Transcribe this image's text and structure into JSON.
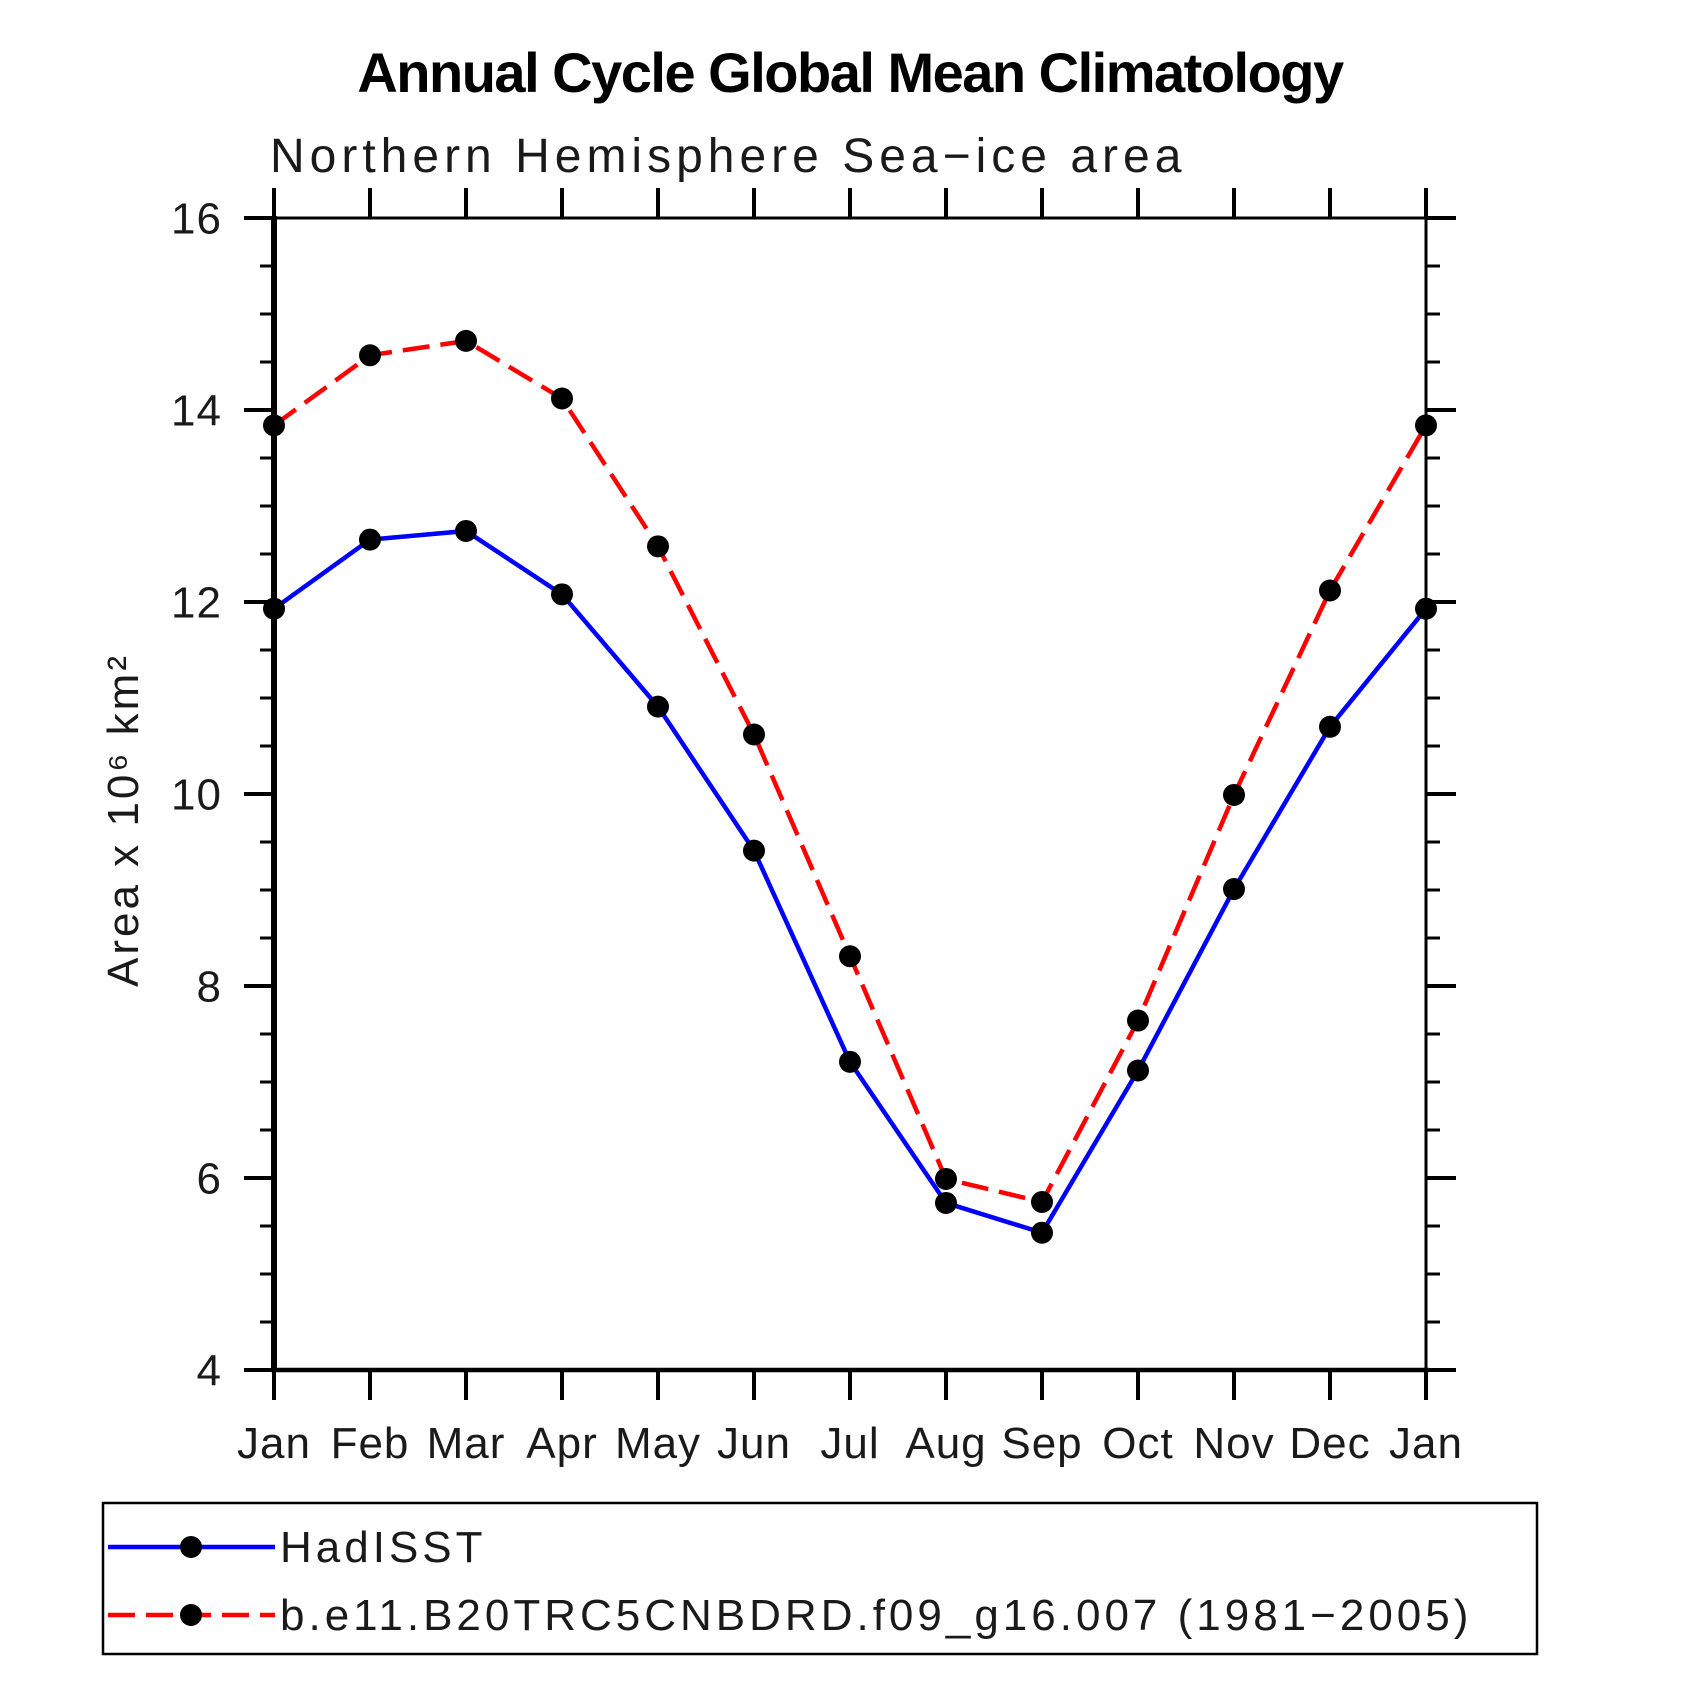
{
  "chart_data": {
    "type": "line",
    "title": "Annual Cycle Global Mean Climatology",
    "subtitle": "Northern Hemisphere Sea−ice area",
    "ylabel": "Area x 10⁶ km²",
    "x_categories": [
      "Jan",
      "Feb",
      "Mar",
      "Apr",
      "May",
      "Jun",
      "Jul",
      "Aug",
      "Sep",
      "Oct",
      "Nov",
      "Dec",
      "Jan"
    ],
    "ylim": [
      4,
      16
    ],
    "y_major_step": 2,
    "y_minor_step": 0.5,
    "y_major_tick_labels": [
      "4",
      "6",
      "8",
      "10",
      "12",
      "14",
      "16"
    ],
    "grid": false,
    "legend_position": "bottom-left-box",
    "axis_color": "#000000",
    "marker_color": "#000000",
    "series": [
      {
        "name": "HadISST",
        "color": "#0000ff",
        "line_style": "solid",
        "marker": "circle",
        "values": [
          11.93,
          12.65,
          12.74,
          12.08,
          10.91,
          9.41,
          7.21,
          5.74,
          5.43,
          7.12,
          9.01,
          10.7,
          11.93
        ]
      },
      {
        "name": "b.e11.B20TRC5CNBDRD.f09_g16.007 (1981−2005)",
        "color": "#ff0000",
        "line_style": "dashed",
        "marker": "circle",
        "values": [
          13.84,
          14.57,
          14.72,
          14.12,
          12.58,
          10.62,
          8.31,
          5.99,
          5.75,
          7.64,
          9.99,
          12.12,
          13.84
        ]
      }
    ]
  }
}
